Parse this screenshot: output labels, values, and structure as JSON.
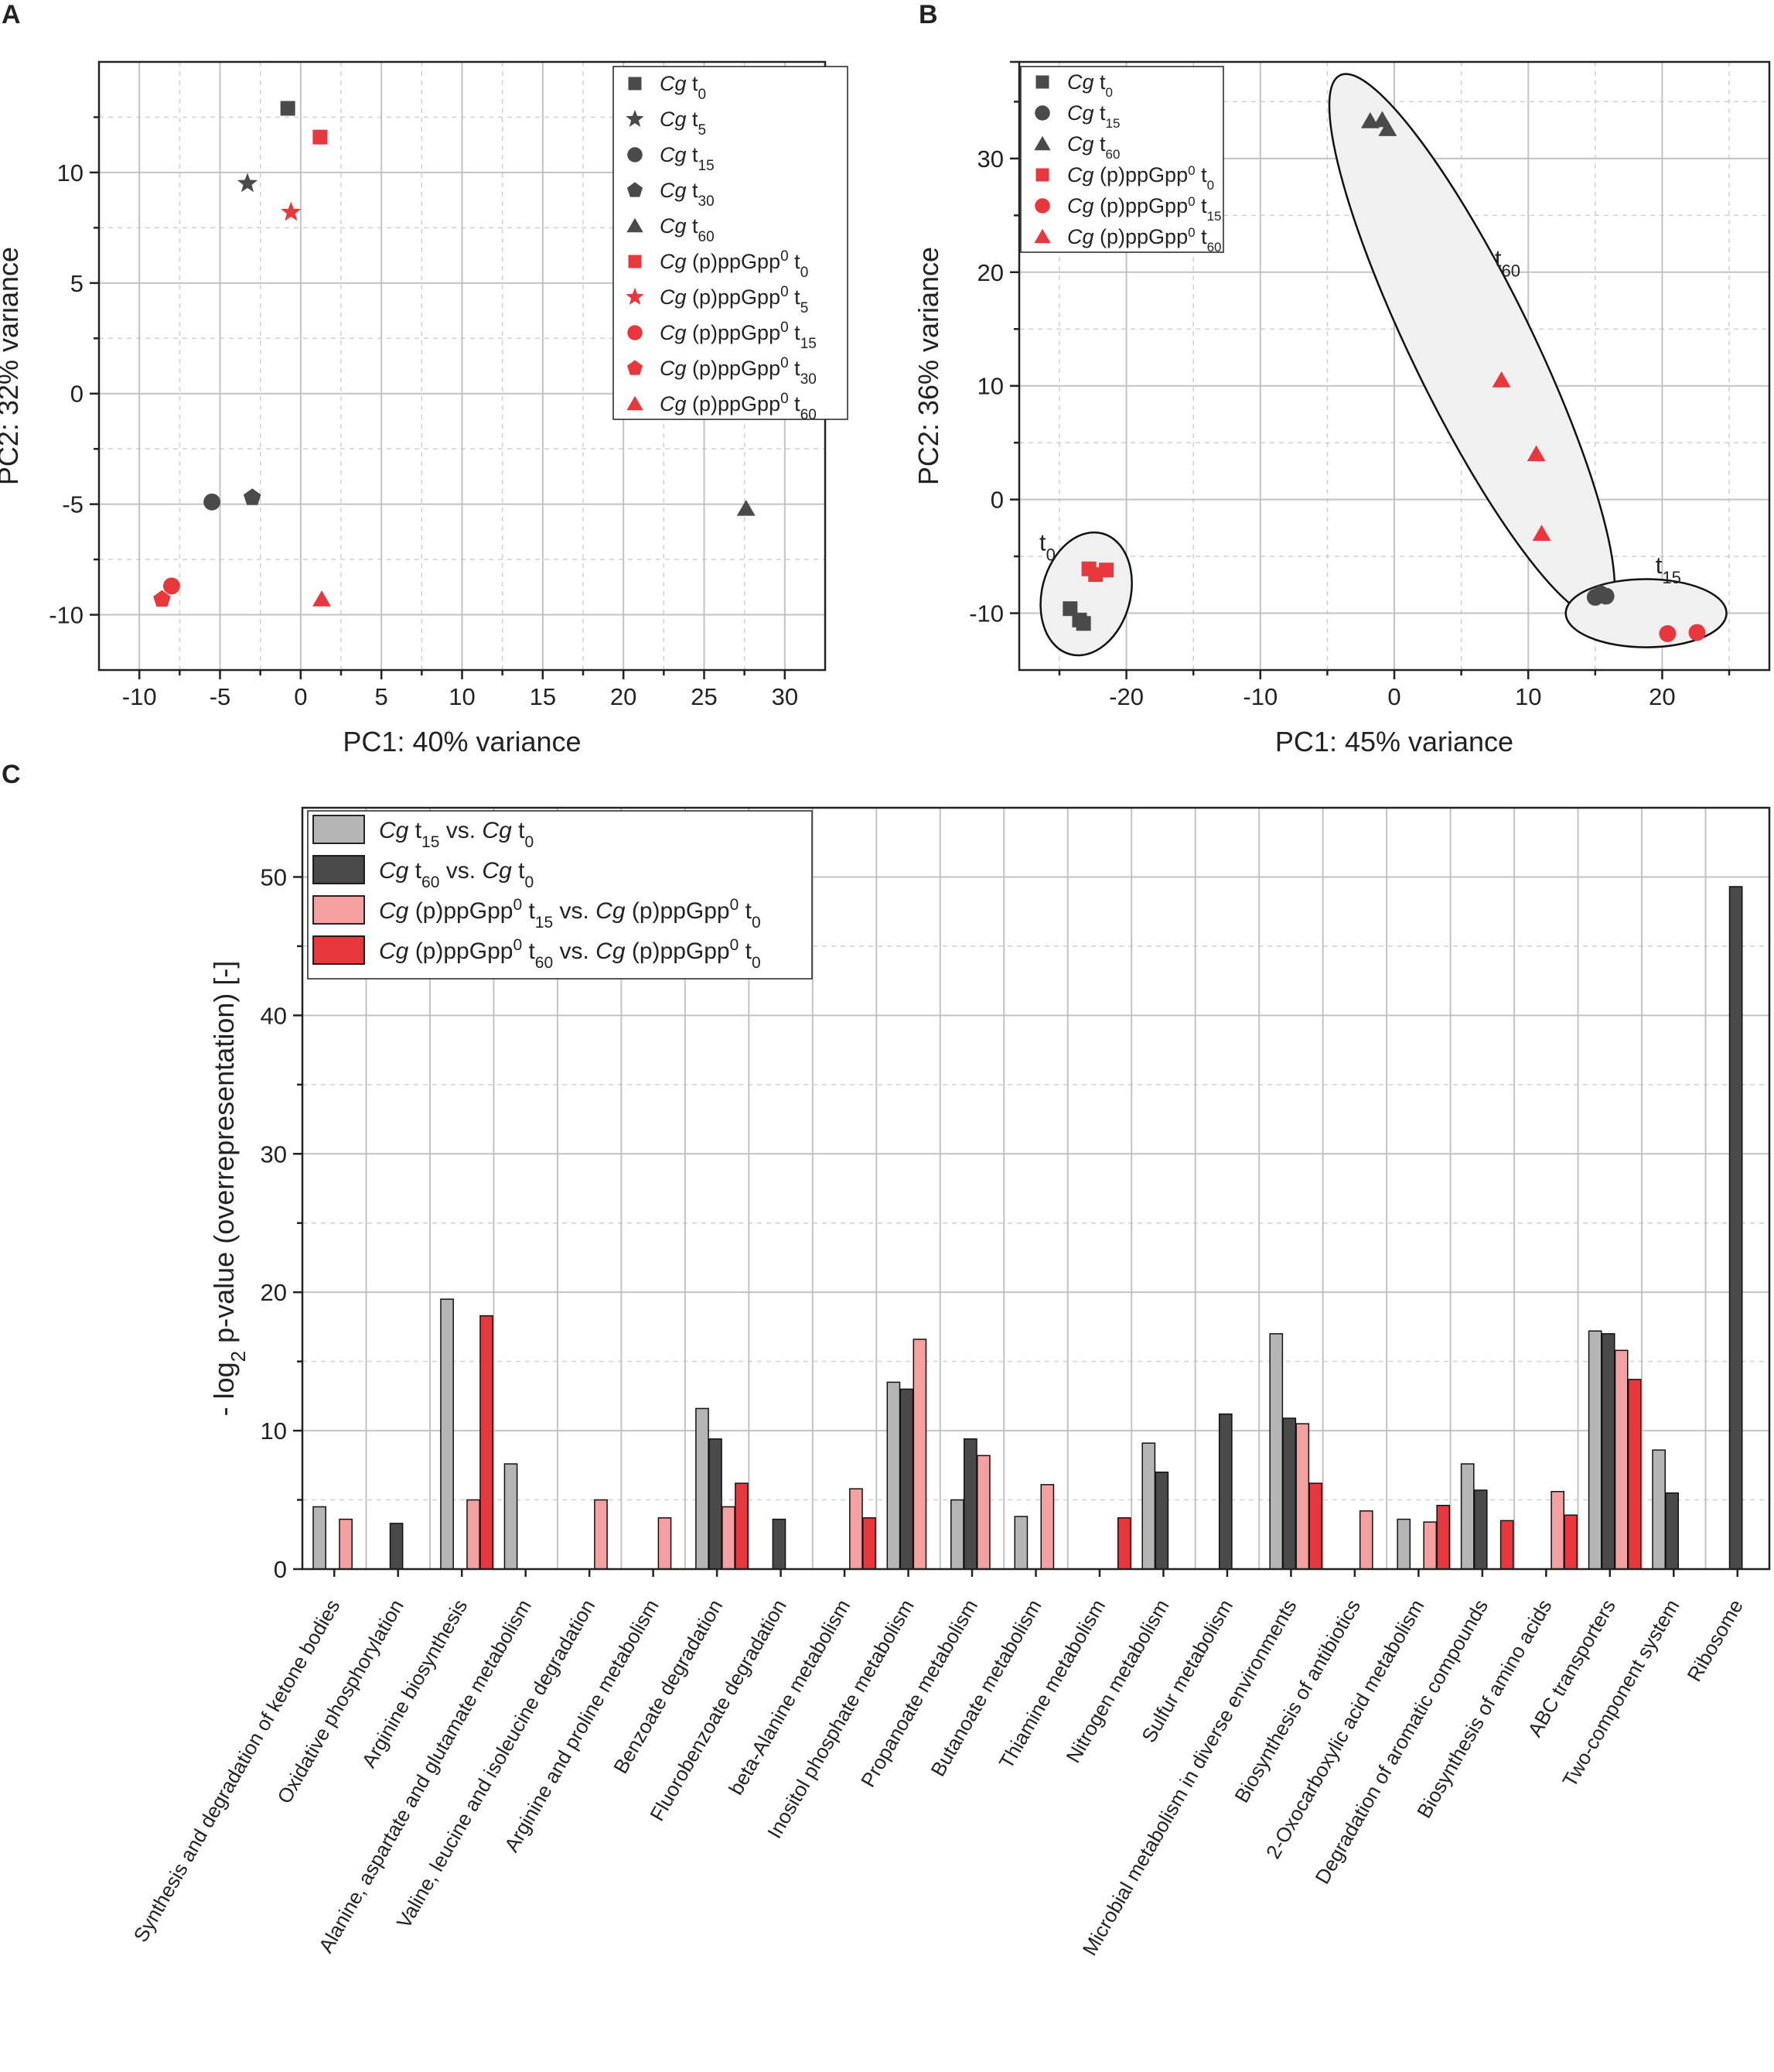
{
  "panels": {
    "a": "A",
    "b": "B",
    "c": "C"
  },
  "colors": {
    "dark": "#4a4a4a",
    "red": "#e8383d",
    "grey": "#b5b5b5",
    "pink": "#f4a0a0",
    "grid": "#bdbdbd"
  },
  "chart_data": [
    {
      "id": "A",
      "type": "scatter",
      "xlabel": "PC1: 40% variance",
      "ylabel": "PC2: 32% variance",
      "xlim": [
        -12.5,
        32.5
      ],
      "ylim": [
        -12.5,
        15
      ],
      "xticks": [
        -10,
        -5,
        0,
        5,
        10,
        15,
        20,
        25,
        30
      ],
      "yticks": [
        -10,
        -5,
        0,
        5,
        10,
        15
      ],
      "legend": [
        {
          "name": "Cg t0",
          "strain": "Cg",
          "label": "t",
          "sub": "0",
          "marker": "square",
          "color": "dark"
        },
        {
          "name": "Cg t5",
          "strain": "Cg",
          "label": "t",
          "sub": "5",
          "marker": "star",
          "color": "dark"
        },
        {
          "name": "Cg t15",
          "strain": "Cg",
          "label": "t",
          "sub": "15",
          "marker": "circle",
          "color": "dark"
        },
        {
          "name": "Cg t30",
          "strain": "Cg",
          "label": "t",
          "sub": "30",
          "marker": "pentagon",
          "color": "dark"
        },
        {
          "name": "Cg t60",
          "strain": "Cg",
          "label": "t",
          "sub": "60",
          "marker": "triangle",
          "color": "dark"
        },
        {
          "name": "Cg (p)ppGpp0 t0",
          "strain": "Cg",
          "label": "(p)ppGpp0 t",
          "sub": "0",
          "marker": "square",
          "color": "red"
        },
        {
          "name": "Cg (p)ppGpp0 t5",
          "strain": "Cg",
          "label": "(p)ppGpp0 t",
          "sub": "5",
          "marker": "star",
          "color": "red"
        },
        {
          "name": "Cg (p)ppGpp0 t15",
          "strain": "Cg",
          "label": "(p)ppGpp0 t",
          "sub": "15",
          "marker": "circle",
          "color": "red"
        },
        {
          "name": "Cg (p)ppGpp0 t30",
          "strain": "Cg",
          "label": "(p)ppGpp0 t",
          "sub": "30",
          "marker": "pentagon",
          "color": "red"
        },
        {
          "name": "Cg (p)ppGpp0 t60",
          "strain": "Cg",
          "label": "(p)ppGpp0 t",
          "sub": "60",
          "marker": "triangle",
          "color": "red"
        }
      ],
      "points": [
        {
          "series": "Cg t0",
          "x": -0.8,
          "y": 12.9,
          "marker": "square",
          "color": "dark"
        },
        {
          "series": "Cg t5",
          "x": -3.3,
          "y": 9.5,
          "marker": "star",
          "color": "dark"
        },
        {
          "series": "Cg t15",
          "x": -5.5,
          "y": -4.9,
          "marker": "circle",
          "color": "dark"
        },
        {
          "series": "Cg t30",
          "x": -3.0,
          "y": -4.7,
          "marker": "pentagon",
          "color": "dark"
        },
        {
          "series": "Cg t60",
          "x": 27.6,
          "y": -5.2,
          "marker": "triangle",
          "color": "dark"
        },
        {
          "series": "Cg (p)ppGpp0 t0",
          "x": 1.2,
          "y": 11.6,
          "marker": "square",
          "color": "red"
        },
        {
          "series": "Cg (p)ppGpp0 t5",
          "x": -0.6,
          "y": 8.2,
          "marker": "star",
          "color": "red"
        },
        {
          "series": "Cg (p)ppGpp0 t15",
          "x": -8.0,
          "y": -8.7,
          "marker": "circle",
          "color": "red"
        },
        {
          "series": "Cg (p)ppGpp0 t30",
          "x": -8.6,
          "y": -9.3,
          "marker": "pentagon",
          "color": "red"
        },
        {
          "series": "Cg (p)ppGpp0 t60",
          "x": 1.3,
          "y": -9.3,
          "marker": "triangle",
          "color": "red"
        }
      ]
    },
    {
      "id": "B",
      "type": "scatter",
      "xlabel": "PC1: 45% variance",
      "ylabel": "PC2: 36% variance",
      "xlim": [
        -28,
        28
      ],
      "ylim": [
        -15,
        38.5
      ],
      "xticks": [
        -20,
        -10,
        0,
        10,
        20
      ],
      "yticks": [
        -10,
        0,
        10,
        20,
        30
      ],
      "legend": [
        {
          "name": "Cg t0",
          "strain": "Cg",
          "label": "t",
          "sub": "0",
          "marker": "square",
          "color": "dark"
        },
        {
          "name": "Cg t15",
          "strain": "Cg",
          "label": "t",
          "sub": "15",
          "marker": "circle",
          "color": "dark"
        },
        {
          "name": "Cg t60",
          "strain": "Cg",
          "label": "t",
          "sub": "60",
          "marker": "triangle",
          "color": "dark"
        },
        {
          "name": "Cg (p)ppGpp0 t0",
          "strain": "Cg",
          "label": "(p)ppGpp0 t",
          "sub": "0",
          "marker": "square",
          "color": "red"
        },
        {
          "name": "Cg (p)ppGpp0 t15",
          "strain": "Cg",
          "label": "(p)ppGpp0 t",
          "sub": "15",
          "marker": "circle",
          "color": "red"
        },
        {
          "name": "Cg (p)ppGpp0 t60",
          "strain": "Cg",
          "label": "(p)ppGpp0 t",
          "sub": "60",
          "marker": "triangle",
          "color": "red"
        }
      ],
      "clusters": [
        {
          "label": "t",
          "sub": "0",
          "cx": -23.0,
          "cy": -8.3,
          "rx": 3.3,
          "ry": 5.5,
          "angle": -15,
          "lx": -26.5,
          "ly": -4.5
        },
        {
          "label": "t",
          "sub": "60",
          "cx": 5.8,
          "cy": 13.5,
          "rx": 4.5,
          "ry": 26.5,
          "angle": 26,
          "lx": 7.5,
          "ly": 20.5
        },
        {
          "label": "t",
          "sub": "15",
          "cx": 18.8,
          "cy": -10.0,
          "rx": 6.0,
          "ry": 3.0,
          "angle": 0,
          "lx": 19.5,
          "ly": -6.5
        }
      ],
      "points": [
        {
          "series": "Cg t0",
          "x": -24.2,
          "y": -9.6,
          "marker": "square",
          "color": "dark"
        },
        {
          "series": "Cg t0",
          "x": -23.5,
          "y": -10.6,
          "marker": "square",
          "color": "dark"
        },
        {
          "series": "Cg t0",
          "x": -23.2,
          "y": -10.9,
          "marker": "square",
          "color": "dark"
        },
        {
          "series": "Cg t15",
          "x": 15.0,
          "y": -8.6,
          "marker": "circle",
          "color": "dark"
        },
        {
          "series": "Cg t15",
          "x": 15.4,
          "y": -8.3,
          "marker": "circle",
          "color": "dark"
        },
        {
          "series": "Cg t15",
          "x": 15.8,
          "y": -8.5,
          "marker": "circle",
          "color": "dark"
        },
        {
          "series": "Cg t60",
          "x": -1.8,
          "y": 33.3,
          "marker": "triangle",
          "color": "dark"
        },
        {
          "series": "Cg t60",
          "x": -0.9,
          "y": 33.4,
          "marker": "triangle",
          "color": "dark"
        },
        {
          "series": "Cg t60",
          "x": -0.5,
          "y": 32.6,
          "marker": "triangle",
          "color": "dark"
        },
        {
          "series": "Cg (p)ppGpp0 t0",
          "x": -22.8,
          "y": -6.1,
          "marker": "square",
          "color": "red"
        },
        {
          "series": "Cg (p)ppGpp0 t0",
          "x": -22.3,
          "y": -6.6,
          "marker": "square",
          "color": "red"
        },
        {
          "series": "Cg (p)ppGpp0 t0",
          "x": -21.5,
          "y": -6.2,
          "marker": "square",
          "color": "red"
        },
        {
          "series": "Cg (p)ppGpp0 t15",
          "x": 20.4,
          "y": -11.8,
          "marker": "circle",
          "color": "red"
        },
        {
          "series": "Cg (p)ppGpp0 t15",
          "x": 22.6,
          "y": -11.7,
          "marker": "circle",
          "color": "red"
        },
        {
          "series": "Cg (p)ppGpp0 t60",
          "x": 8.0,
          "y": 10.5,
          "marker": "triangle",
          "color": "red"
        },
        {
          "series": "Cg (p)ppGpp0 t60",
          "x": 10.6,
          "y": 4.0,
          "marker": "triangle",
          "color": "red"
        },
        {
          "series": "Cg (p)ppGpp0 t60",
          "x": 11.0,
          "y": -3.0,
          "marker": "triangle",
          "color": "red"
        }
      ]
    },
    {
      "id": "C",
      "type": "bar",
      "ylabel": "- log2 p-value (overrepresentation) [-]",
      "ylabel_parts": {
        "prefix": "- log",
        "sub": "2",
        "suffix": " p-value (overrepresentation) [-]"
      },
      "ylim": [
        0,
        55
      ],
      "yticks": [
        0,
        10,
        20,
        30,
        40,
        50
      ],
      "categories": [
        "Synthesis and degradation of ketone bodies",
        "Oxidative phosphorylation",
        "Arginine biosynthesis",
        "Alanine, aspartate and glutamate metabolism",
        "Valine, leucine and isoleucine degradation",
        "Arginine and proline metabolism",
        "Benzoate degradation",
        "Fluorobenzoate degradation",
        "beta-Alanine metabolism",
        "Inositol phosphate metabolism",
        "Propanoate metabolism",
        "Butanoate metabolism",
        "Thiamine metabolism",
        "Nitrogen metabolism",
        "Sulfur metabolism",
        "Microbial metabolism in diverse environments",
        "Biosynthesis of antibiotics",
        "2-Oxocarboxylic acid metabolism",
        "Degradation of aromatic compounds",
        "Biosynthesis of amino acids",
        "ABC transporters",
        "Two-component system",
        "Ribosome"
      ],
      "series": [
        {
          "name": "Cg t15 vs. Cg t0",
          "color": "grey",
          "legend": [
            [
              "Cg",
              "i"
            ],
            [
              " t",
              ""
            ],
            [
              "15",
              "sub"
            ],
            [
              " vs. ",
              ""
            ],
            [
              "Cg",
              "i"
            ],
            [
              " t",
              ""
            ],
            [
              "0",
              "sub"
            ]
          ],
          "values": [
            4.5,
            0,
            19.5,
            7.6,
            0,
            0,
            11.6,
            0,
            0,
            13.5,
            5.0,
            3.8,
            0,
            9.1,
            0,
            17.0,
            0,
            3.6,
            7.6,
            0,
            17.2,
            8.6,
            0
          ]
        },
        {
          "name": "Cg t60 vs. Cg t0",
          "color": "dark",
          "legend": [
            [
              "Cg",
              "i"
            ],
            [
              " t",
              ""
            ],
            [
              "60",
              "sub"
            ],
            [
              " vs. ",
              ""
            ],
            [
              "Cg",
              "i"
            ],
            [
              " t",
              ""
            ],
            [
              "0",
              "sub"
            ]
          ],
          "values": [
            0,
            3.3,
            0,
            0,
            0,
            0,
            9.4,
            3.6,
            0,
            13.0,
            9.4,
            0,
            0,
            7.0,
            11.2,
            10.9,
            0,
            0,
            5.7,
            0,
            17.0,
            5.5,
            49.3
          ]
        },
        {
          "name": "Cg (p)ppGpp0 t15 vs. Cg (p)ppGpp0 t0",
          "color": "pink",
          "legend": [
            [
              "Cg",
              "i"
            ],
            [
              " (p)ppGpp",
              ""
            ],
            [
              "0",
              "sup"
            ],
            [
              " t",
              ""
            ],
            [
              "15",
              "sub"
            ],
            [
              " vs. ",
              ""
            ],
            [
              "Cg",
              "i"
            ],
            [
              " (p)ppGpp",
              ""
            ],
            [
              "0",
              "sup"
            ],
            [
              " t",
              ""
            ],
            [
              "0",
              "sub"
            ]
          ],
          "values": [
            3.6,
            0,
            5.0,
            0,
            5.0,
            3.7,
            4.5,
            0,
            5.8,
            16.6,
            8.2,
            6.1,
            0,
            0,
            0,
            10.5,
            4.2,
            3.4,
            0,
            5.6,
            15.8,
            0,
            0
          ]
        },
        {
          "name": "Cg (p)ppGpp0 t60 vs. Cg (p)ppGpp0 t0",
          "color": "red",
          "legend": [
            [
              "Cg",
              "i"
            ],
            [
              " (p)ppGpp",
              ""
            ],
            [
              "0",
              "sup"
            ],
            [
              " t",
              ""
            ],
            [
              "60",
              "sub"
            ],
            [
              " vs. ",
              ""
            ],
            [
              "Cg",
              "i"
            ],
            [
              " (p)ppGpp",
              ""
            ],
            [
              "0",
              "sup"
            ],
            [
              " t",
              ""
            ],
            [
              "0",
              "sub"
            ]
          ],
          "values": [
            0,
            0,
            18.3,
            0,
            0,
            0,
            6.2,
            0,
            3.7,
            0,
            0,
            0,
            3.7,
            0,
            0,
            6.2,
            0,
            4.6,
            3.5,
            3.9,
            13.7,
            0,
            0
          ]
        }
      ]
    }
  ]
}
